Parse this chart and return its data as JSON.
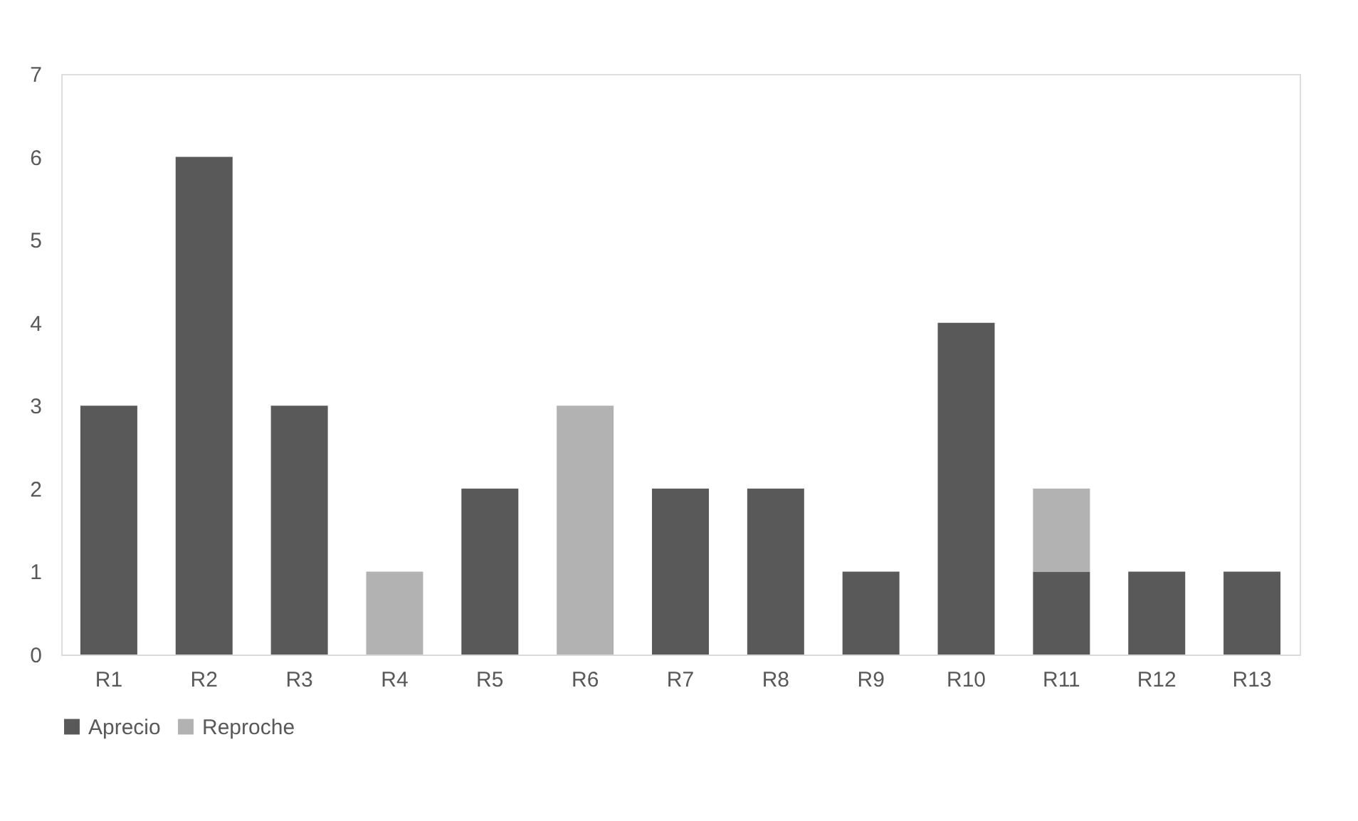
{
  "chart_data": {
    "type": "bar",
    "stacked": true,
    "categories": [
      "R1",
      "R2",
      "R3",
      "R4",
      "R5",
      "R6",
      "R7",
      "R8",
      "R9",
      "R10",
      "R11",
      "R12",
      "R13"
    ],
    "series": [
      {
        "name": "Aprecio",
        "color": "#595959",
        "values": [
          3,
          6,
          3,
          0,
          2,
          0,
          2,
          2,
          1,
          4,
          1,
          1,
          1
        ]
      },
      {
        "name": "Reproche",
        "color": "#b2b2b2",
        "values": [
          0,
          0,
          0,
          1,
          0,
          3,
          0,
          0,
          0,
          0,
          1,
          0,
          0
        ]
      }
    ],
    "ylim": [
      0,
      7
    ],
    "yticks": [
      0,
      1,
      2,
      3,
      4,
      5,
      6,
      7
    ],
    "grid": false,
    "legend": "bottom"
  }
}
